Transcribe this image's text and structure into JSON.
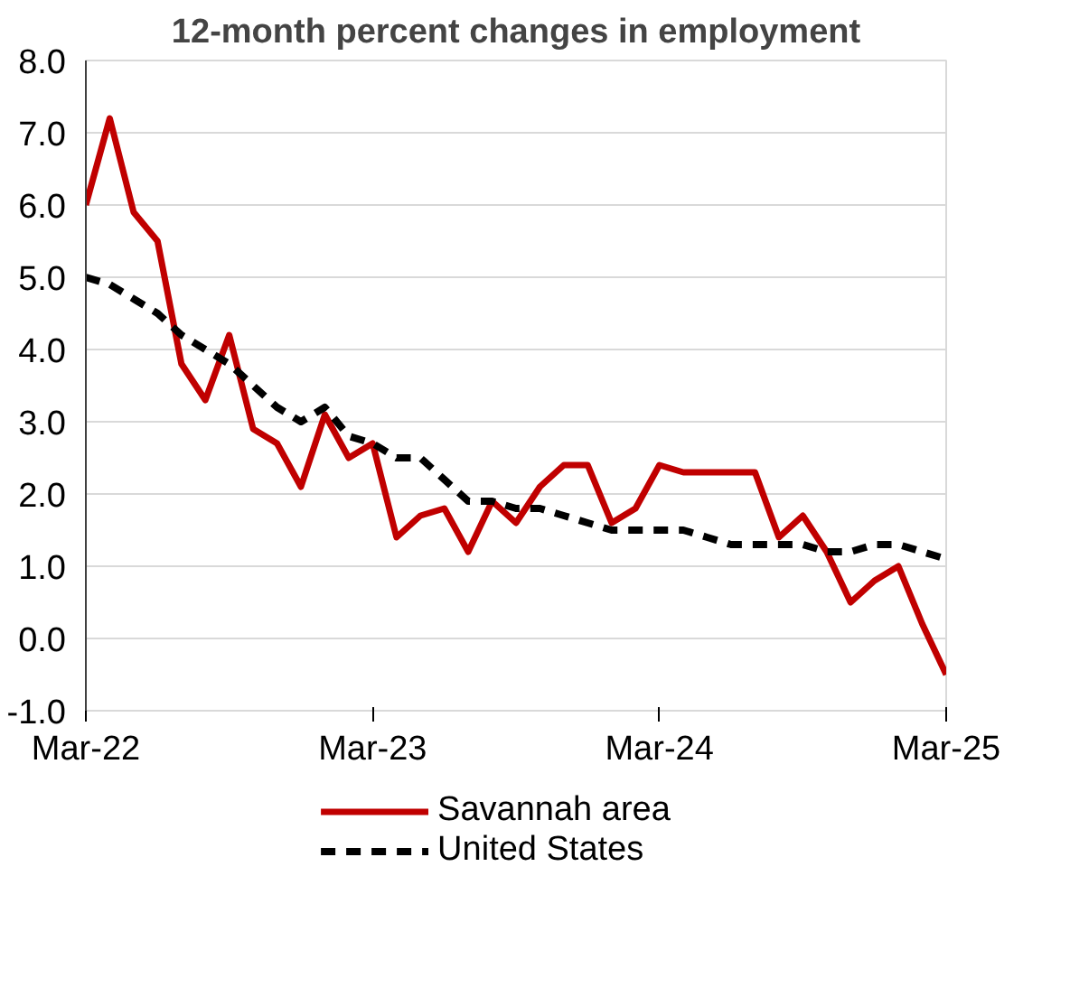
{
  "chart_data": {
    "type": "line",
    "title": "12-month percent changes in employment",
    "categories": [
      "Mar-22",
      null,
      null,
      null,
      null,
      null,
      null,
      null,
      null,
      null,
      null,
      null,
      "Mar-23",
      null,
      null,
      null,
      null,
      null,
      null,
      null,
      null,
      null,
      null,
      null,
      "Mar-24",
      null,
      null,
      null,
      null,
      null,
      null,
      null,
      null,
      null,
      null,
      null,
      "Mar-25"
    ],
    "series": [
      {
        "name": "Savannah area",
        "color": "#c00000",
        "line_style": "solid",
        "values": [
          6.0,
          7.2,
          5.9,
          5.5,
          3.8,
          3.3,
          4.2,
          2.9,
          2.7,
          2.1,
          3.1,
          2.5,
          2.7,
          1.4,
          1.7,
          1.8,
          1.2,
          1.9,
          1.6,
          2.1,
          2.4,
          2.4,
          1.6,
          1.8,
          2.4,
          2.3,
          2.3,
          2.3,
          2.3,
          1.4,
          1.7,
          1.2,
          0.5,
          0.8,
          1.0,
          0.2,
          -0.5
        ]
      },
      {
        "name": "United States",
        "color": "#000000",
        "line_style": "dashed",
        "values": [
          5.0,
          4.9,
          4.7,
          4.5,
          4.2,
          4.0,
          3.8,
          3.5,
          3.2,
          3.0,
          3.2,
          2.8,
          2.7,
          2.5,
          2.5,
          2.2,
          1.9,
          1.9,
          1.8,
          1.8,
          1.7,
          1.6,
          1.5,
          1.5,
          1.5,
          1.5,
          1.4,
          1.3,
          1.3,
          1.3,
          1.3,
          1.2,
          1.2,
          1.3,
          1.3,
          1.2,
          1.1
        ]
      }
    ],
    "ylim": [
      -1,
      8
    ],
    "yticks": [
      {
        "value": -1,
        "label": "-1.0"
      },
      {
        "value": 0,
        "label": "0.0"
      },
      {
        "value": 1,
        "label": "1.0"
      },
      {
        "value": 2,
        "label": "2.0"
      },
      {
        "value": 3,
        "label": "3.0"
      },
      {
        "value": 4,
        "label": "4.0"
      },
      {
        "value": 5,
        "label": "5.0"
      },
      {
        "value": 6,
        "label": "6.0"
      },
      {
        "value": 7,
        "label": "7.0"
      },
      {
        "value": 8,
        "label": "8.0"
      }
    ],
    "grid": "y",
    "legend": "bottom"
  }
}
